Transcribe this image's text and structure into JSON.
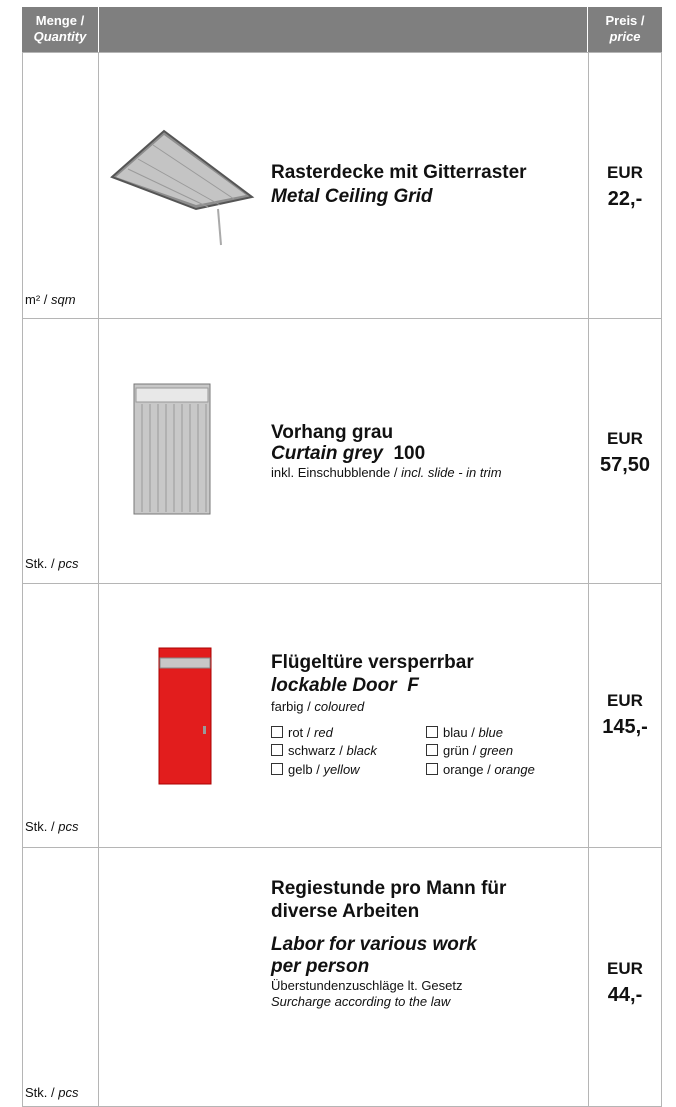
{
  "header": {
    "quantity": {
      "de": "Menge /",
      "en": "Quantity"
    },
    "price": {
      "de": "Preis /",
      "en": "price"
    }
  },
  "rows": [
    {
      "unit": {
        "de": "m² /",
        "en": "sqm"
      },
      "title_de": "Rasterdecke mit Gitterraster",
      "title_en": "Metal Ceiling Grid",
      "currency": "EUR",
      "amount": "22,-"
    },
    {
      "unit": {
        "de": "Stk. /",
        "en": "pcs"
      },
      "title_de": "Vorhang grau",
      "title_en": "Curtain grey",
      "code": "100",
      "note": {
        "de": "inkl. Einschubblende /",
        "en": "incl. slide - in trim"
      },
      "currency": "EUR",
      "amount": "57,50"
    },
    {
      "unit": {
        "de": "Stk. /",
        "en": "pcs"
      },
      "title_de": "Flügeltüre versperrbar",
      "title_en": "lockable Door",
      "code": "F",
      "note": {
        "de": "farbig /",
        "en": "coloured"
      },
      "options": [
        {
          "de": "rot /",
          "en": "red"
        },
        {
          "de": "blau /",
          "en": "blue"
        },
        {
          "de": "schwarz /",
          "en": "black"
        },
        {
          "de": "grün /",
          "en": "green"
        },
        {
          "de": "gelb /",
          "en": "yellow"
        },
        {
          "de": "orange /",
          "en": "orange"
        }
      ],
      "currency": "EUR",
      "amount": "145,-"
    },
    {
      "unit": {
        "de": "Stk. /",
        "en": "pcs"
      },
      "title_de": [
        "Regiestunde pro Mann für",
        "diverse Arbeiten"
      ],
      "title_en": [
        "Labor for various work",
        "per person"
      ],
      "notes": [
        "Überstundenzuschläge lt. Gesetz",
        "Surcharge according to the law"
      ],
      "currency": "EUR",
      "amount": "44,-"
    }
  ]
}
